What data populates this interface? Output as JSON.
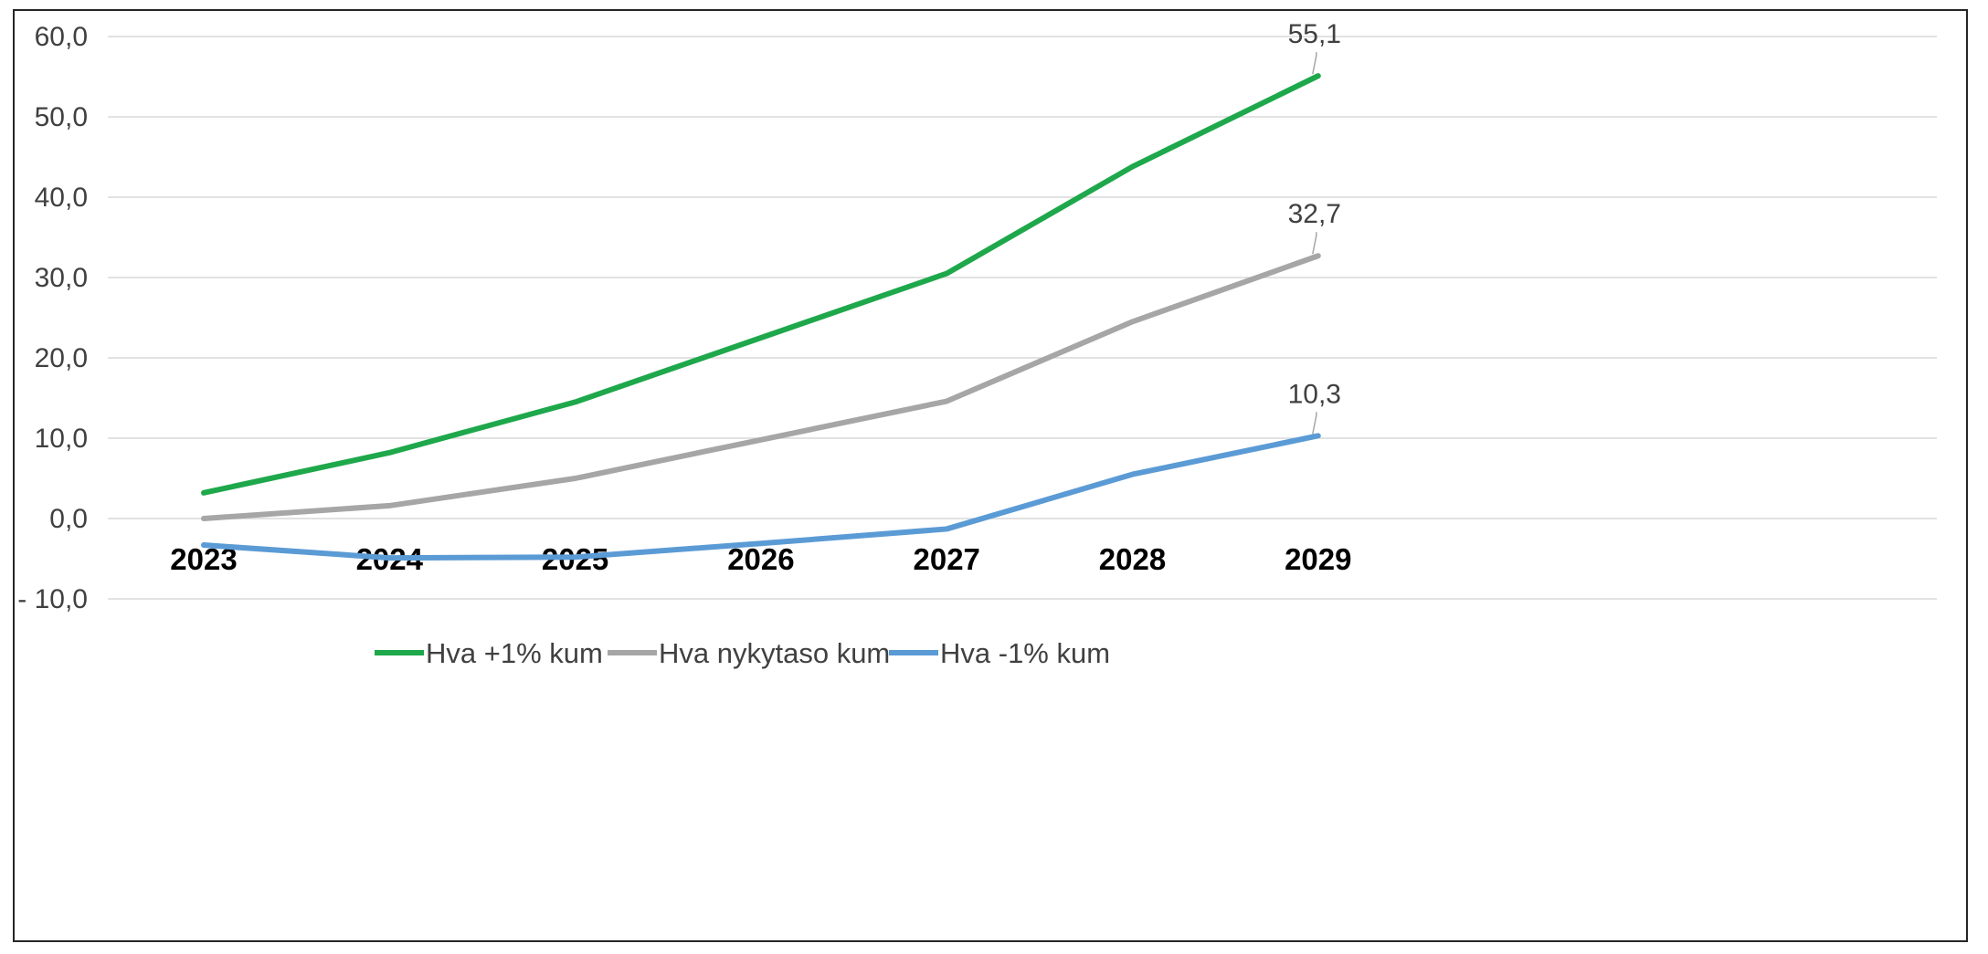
{
  "chart_data": {
    "type": "line",
    "categories": [
      "2023",
      "2024",
      "2025",
      "2026",
      "2027",
      "2028",
      "2029"
    ],
    "series": [
      {
        "name": "Hva +1% kum",
        "color": "#1ea84b",
        "values": [
          3.2,
          8.2,
          14.5,
          22.5,
          30.5,
          43.8,
          55.1
        ]
      },
      {
        "name": "Hva nykytaso kum",
        "color": "#a6a6a6",
        "values": [
          0.0,
          1.6,
          5.0,
          9.8,
          14.6,
          24.5,
          32.7
        ]
      },
      {
        "name": "Hva -1% kum",
        "color": "#5b9bd5",
        "values": [
          -3.3,
          -4.9,
          -4.8,
          -3.1,
          -1.3,
          5.5,
          10.3
        ]
      }
    ],
    "data_labels": [
      {
        "series": 0,
        "point": 6,
        "text": "55,1"
      },
      {
        "series": 1,
        "point": 6,
        "text": "32,7"
      },
      {
        "series": 2,
        "point": 6,
        "text": "10,3"
      }
    ],
    "yticks": [
      60,
      50,
      40,
      30,
      20,
      10,
      0,
      -10
    ],
    "ytick_labels": [
      "60,0",
      "50,0",
      "40,0",
      "30,0",
      "20,0",
      "10,0",
      "0,0",
      "- 10,0"
    ],
    "ylim": [
      -10,
      60
    ],
    "grid": true,
    "legend_position": "bottom",
    "title": "",
    "xlabel": "",
    "ylabel": ""
  }
}
